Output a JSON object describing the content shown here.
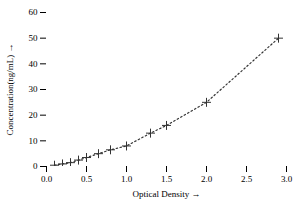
{
  "chart_data": {
    "type": "line",
    "xlabel": "Optical Density",
    "ylabel": "Concentration(ng/mL)",
    "x": [
      0.1,
      0.2,
      0.3,
      0.4,
      0.5,
      0.65,
      0.8,
      1.0,
      1.3,
      1.5,
      2.0,
      2.9
    ],
    "values": [
      0.5,
      1.0,
      1.5,
      2.5,
      3.5,
      5.0,
      6.5,
      8.0,
      13.0,
      16.0,
      25.0,
      50.0
    ],
    "xlim": [
      0.0,
      3.0
    ],
    "ylim": [
      0,
      60
    ],
    "xticks": [
      {
        "value": 0.0,
        "label": "0.0"
      },
      0.5,
      {
        "value": 1.0,
        "label": "1.0"
      },
      1.5,
      {
        "value": 2.0,
        "label": "2.0"
      },
      2.5,
      {
        "value": 3.0,
        "label": "3.0"
      }
    ],
    "yticks": [
      0,
      10,
      20,
      30,
      40,
      50,
      60
    ],
    "color": "#333333",
    "marker": "+",
    "line_style": "dotted"
  }
}
